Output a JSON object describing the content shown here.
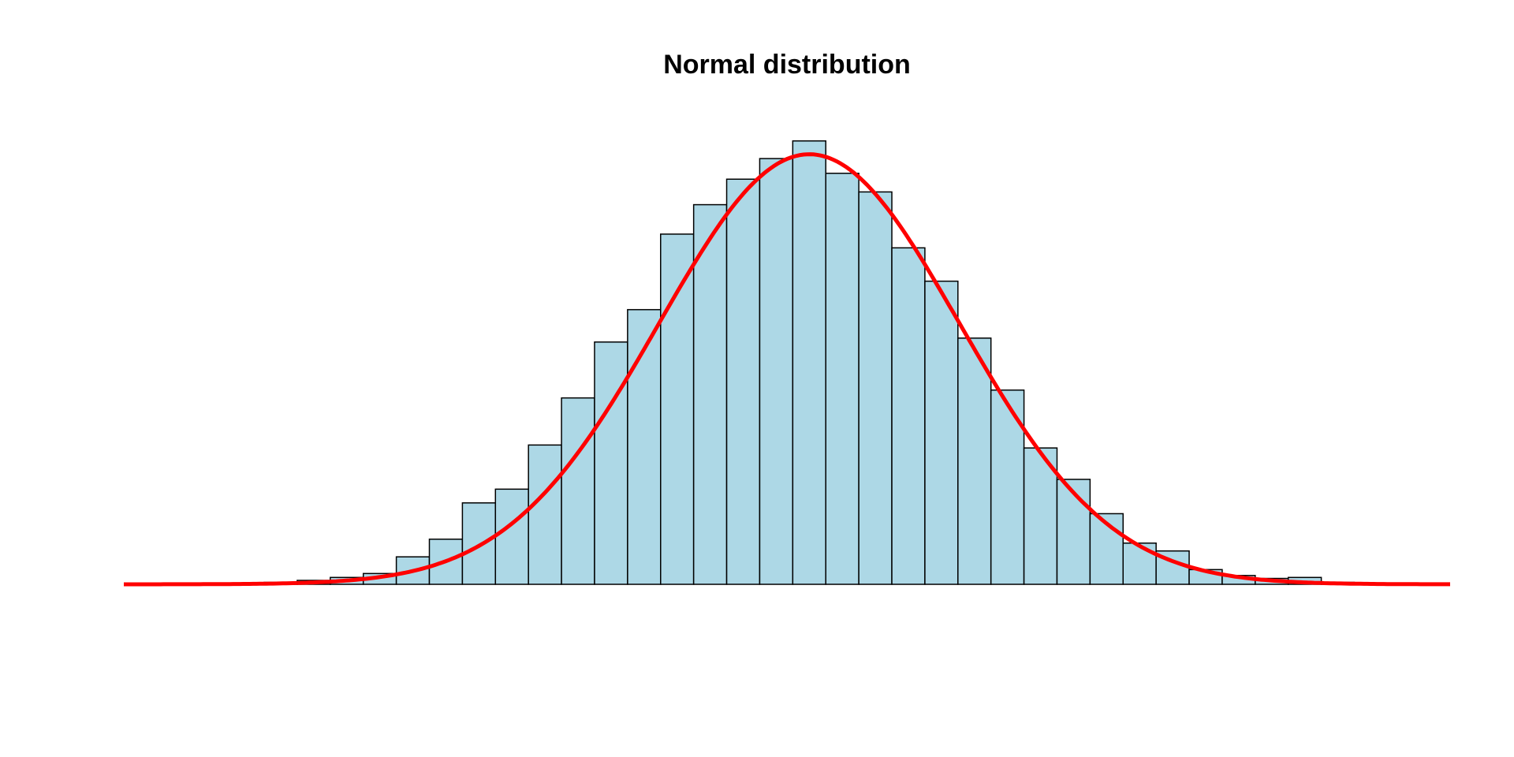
{
  "chart_data": {
    "type": "bar",
    "subtype": "histogram-with-density-curve",
    "title": "Normal distribution",
    "xlabel": "",
    "ylabel": "",
    "axes_visible": false,
    "grid": false,
    "xlim": [
      -4.15,
      3.88
    ],
    "ylim": [
      0,
      0.5
    ],
    "bin_start": -3.5,
    "bin_width": 0.2,
    "densities": [
      0.001,
      0.002,
      0.004,
      0.007,
      0.011,
      0.028,
      0.046,
      0.083,
      0.097,
      0.142,
      0.19,
      0.247,
      0.28,
      0.357,
      0.387,
      0.413,
      0.434,
      0.452,
      0.419,
      0.4,
      0.343,
      0.309,
      0.251,
      0.198,
      0.139,
      0.107,
      0.072,
      0.042,
      0.034,
      0.015,
      0.009,
      0.006,
      0.007,
      0.002
    ],
    "curve": {
      "type": "normal-density",
      "mean": 0,
      "sd": 0.91,
      "range": [
        -4.15,
        3.88
      ]
    },
    "colors": {
      "bar_fill": "#ADD8E6",
      "bar_stroke": "#000000",
      "curve": "#FF0000"
    }
  }
}
